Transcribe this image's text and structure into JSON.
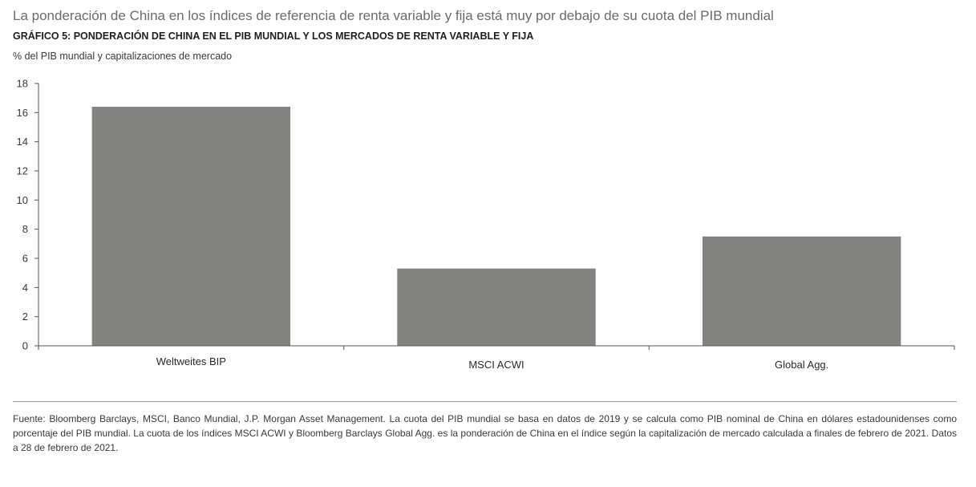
{
  "headline": "La ponderación de China en los índices de referencia de renta variable y fija está muy por debajo de su cuota del PIB mundial",
  "source_note": "Fuente: Bloomberg Barclays, MSCI, Banco Mundial, J.P. Morgan Asset Management. La cuota del PIB mundial se basa en datos de 2019 y se calcula como PIB nominal de China en dólares estadounidenses como porcentaje del PIB mundial. La cuota de los índices MSCI ACWI y Bloomberg Barclays Global Agg. es la ponderación de China en el índice según la capitalización de mercado calculada a finales de febrero de 2021. Datos a 28 de febrero de 2021.",
  "chart_data": {
    "type": "bar",
    "title": "GRÁFICO 5: PONDERACIÓN DE CHINA EN EL PIB MUNDIAL Y LOS MERCADOS DE RENTA VARIABLE Y FIJA",
    "ylabel": "% del PIB mundial y capitalizaciones de mercado",
    "xlabel": "",
    "categories": [
      "Weltweites BIP",
      "MSCI ACWI",
      "Global Agg."
    ],
    "values": [
      16.4,
      5.3,
      7.5
    ],
    "ylim": [
      0,
      18
    ],
    "yticks": [
      0,
      2,
      4,
      6,
      8,
      10,
      12,
      14,
      16,
      18
    ],
    "bar_color": "#82827e",
    "grid": false,
    "legend": "none"
  }
}
